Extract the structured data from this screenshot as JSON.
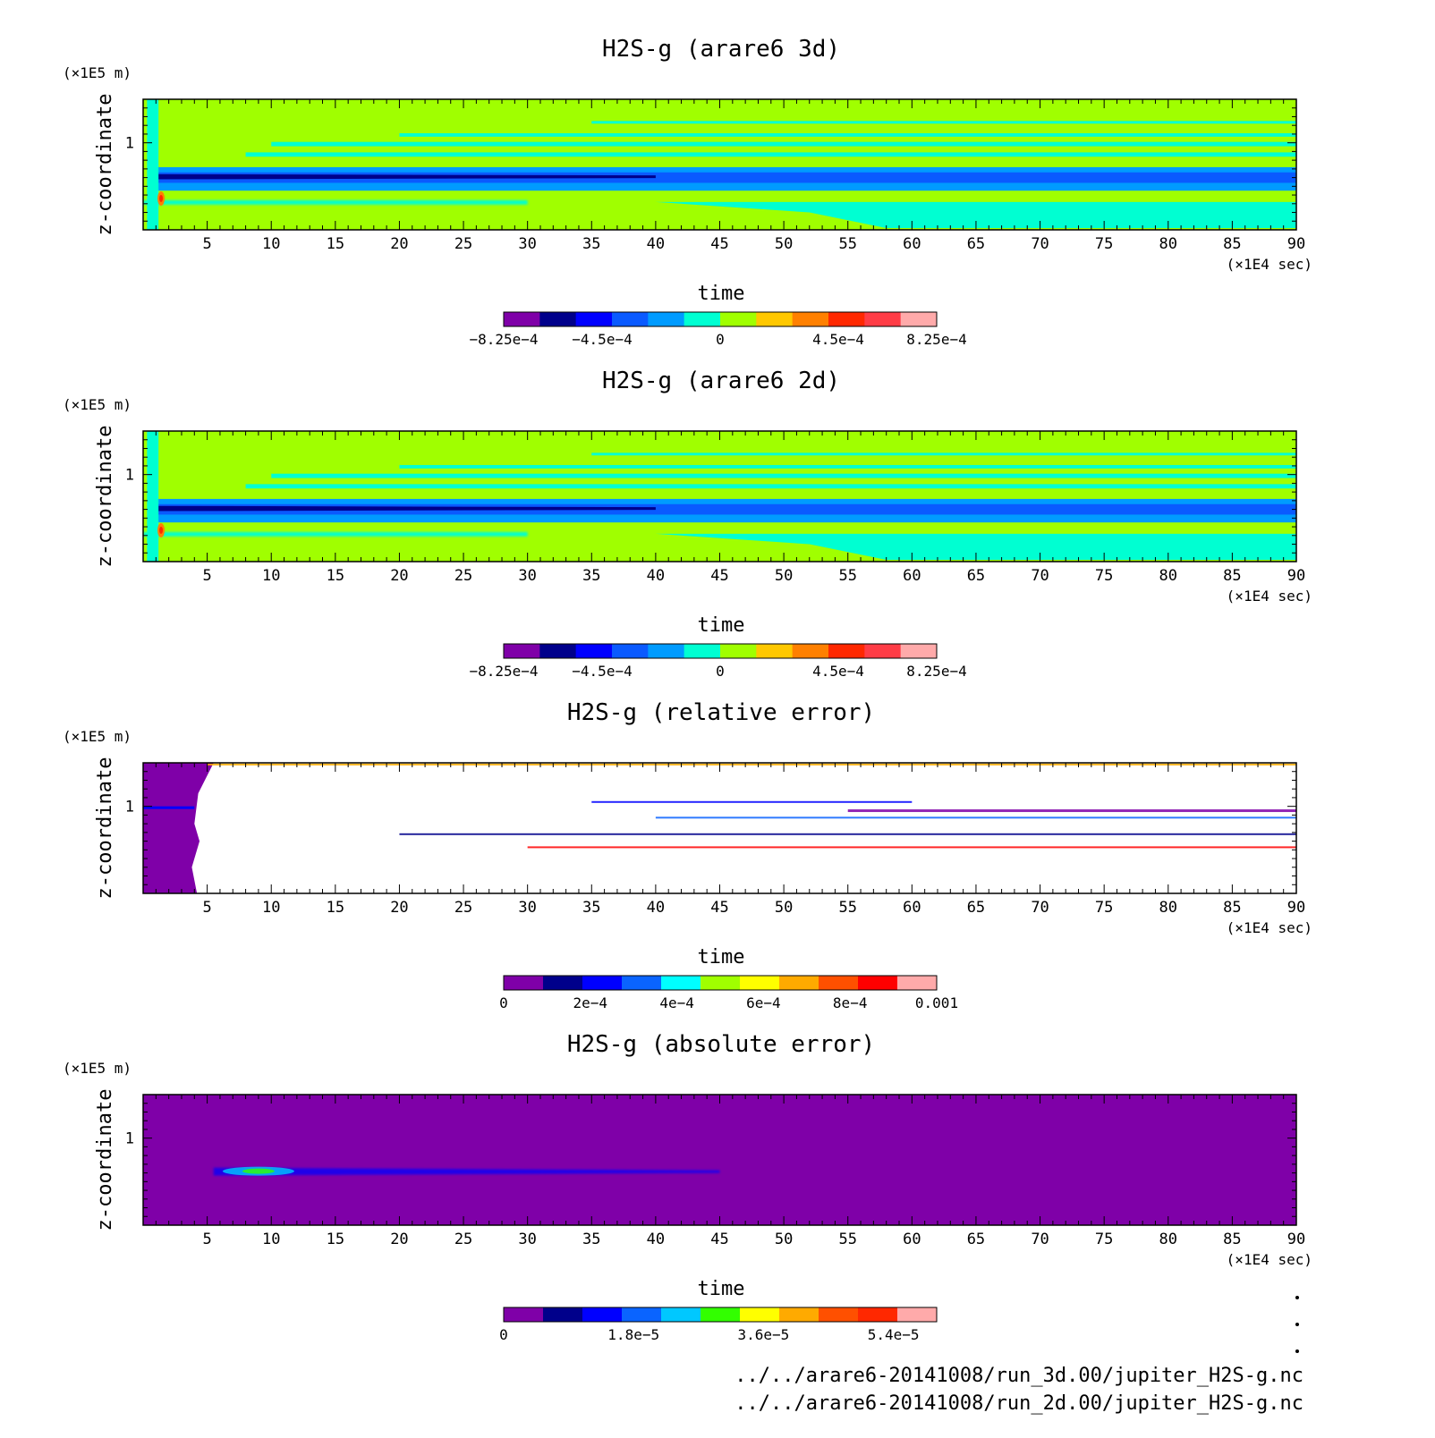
{
  "chart_data": [
    {
      "type": "heatmap",
      "title": "H2S-g (arare6 3d)",
      "xlabel": "time",
      "x_unit": "(×1E4 sec)",
      "ylabel": "z-coordinate",
      "y_unit": "(×1E5 m)",
      "xlim": [
        0,
        90
      ],
      "ylim": [
        0,
        1.5
      ],
      "x_ticks": [
        "5",
        "10",
        "15",
        "20",
        "25",
        "30",
        "35",
        "40",
        "45",
        "50",
        "55",
        "60",
        "65",
        "70",
        "75",
        "80",
        "85",
        "90"
      ],
      "y_ticks": [
        "1"
      ],
      "colorbar": {
        "colors": [
          "#7f00a8",
          "#00008b",
          "#0000ff",
          "#0a5aff",
          "#009bff",
          "#00ffd2",
          "#a0ff00",
          "#ffc800",
          "#ff8000",
          "#ff2800",
          "#ff3c46",
          "#ffaaaa"
        ],
        "labels": [
          "−8.25e−4",
          "−4.5e−4",
          "0",
          "4.5e−4",
          "8.25e−4"
        ]
      }
    },
    {
      "type": "heatmap",
      "title": "H2S-g (arare6 2d)",
      "xlabel": "time",
      "x_unit": "(×1E4 sec)",
      "ylabel": "z-coordinate",
      "y_unit": "(×1E5 m)",
      "xlim": [
        0,
        90
      ],
      "ylim": [
        0,
        1.5
      ],
      "x_ticks": [
        "5",
        "10",
        "15",
        "20",
        "25",
        "30",
        "35",
        "40",
        "45",
        "50",
        "55",
        "60",
        "65",
        "70",
        "75",
        "80",
        "85",
        "90"
      ],
      "y_ticks": [
        "1"
      ],
      "colorbar": {
        "colors": [
          "#7f00a8",
          "#00008b",
          "#0000ff",
          "#0a5aff",
          "#009bff",
          "#00ffd2",
          "#a0ff00",
          "#ffc800",
          "#ff8000",
          "#ff2800",
          "#ff3c46",
          "#ffaaaa"
        ],
        "labels": [
          "−8.25e−4",
          "−4.5e−4",
          "0",
          "4.5e−4",
          "8.25e−4"
        ]
      }
    },
    {
      "type": "heatmap",
      "title": "H2S-g (relative error)",
      "xlabel": "time",
      "x_unit": "(×1E4 sec)",
      "ylabel": "z-coordinate",
      "y_unit": "(×1E5 m)",
      "xlim": [
        0,
        90
      ],
      "ylim": [
        0,
        1.5
      ],
      "x_ticks": [
        "5",
        "10",
        "15",
        "20",
        "25",
        "30",
        "35",
        "40",
        "45",
        "50",
        "55",
        "60",
        "65",
        "70",
        "75",
        "80",
        "85",
        "90"
      ],
      "y_ticks": [
        "1"
      ],
      "colorbar": {
        "colors": [
          "#7f00a8",
          "#00008b",
          "#0000ff",
          "#0a64ff",
          "#00ffff",
          "#a0ff00",
          "#ffff00",
          "#ffaa00",
          "#ff5000",
          "#ff0000",
          "#ffaaaa"
        ],
        "labels": [
          "0",
          "2e−4",
          "4e−4",
          "6e−4",
          "8e−4",
          "0.001"
        ]
      }
    },
    {
      "type": "heatmap",
      "title": "H2S-g (absolute error)",
      "xlabel": "time",
      "x_unit": "(×1E4 sec)",
      "ylabel": "z-coordinate",
      "y_unit": "(×1E5 m)",
      "xlim": [
        0,
        90
      ],
      "ylim": [
        0,
        1.5
      ],
      "x_ticks": [
        "5",
        "10",
        "15",
        "20",
        "25",
        "30",
        "35",
        "40",
        "45",
        "50",
        "55",
        "60",
        "65",
        "70",
        "75",
        "80",
        "85",
        "90"
      ],
      "y_ticks": [
        "1"
      ],
      "colorbar": {
        "colors": [
          "#7f00a8",
          "#00008b",
          "#0000ff",
          "#0a64ff",
          "#00c8ff",
          "#32ff00",
          "#ffff00",
          "#ffaa00",
          "#ff5000",
          "#ff2800",
          "#ffaaaa"
        ],
        "labels": [
          "0",
          "1.8e−5",
          "3.6e−5",
          "5.4e−5"
        ]
      }
    }
  ],
  "footer": {
    "lines": [
      "../../arare6-20141008/run_3d.00/jupiter_H2S-g.nc",
      "../../arare6-20141008/run_2d.00/jupiter_H2S-g.nc"
    ]
  }
}
